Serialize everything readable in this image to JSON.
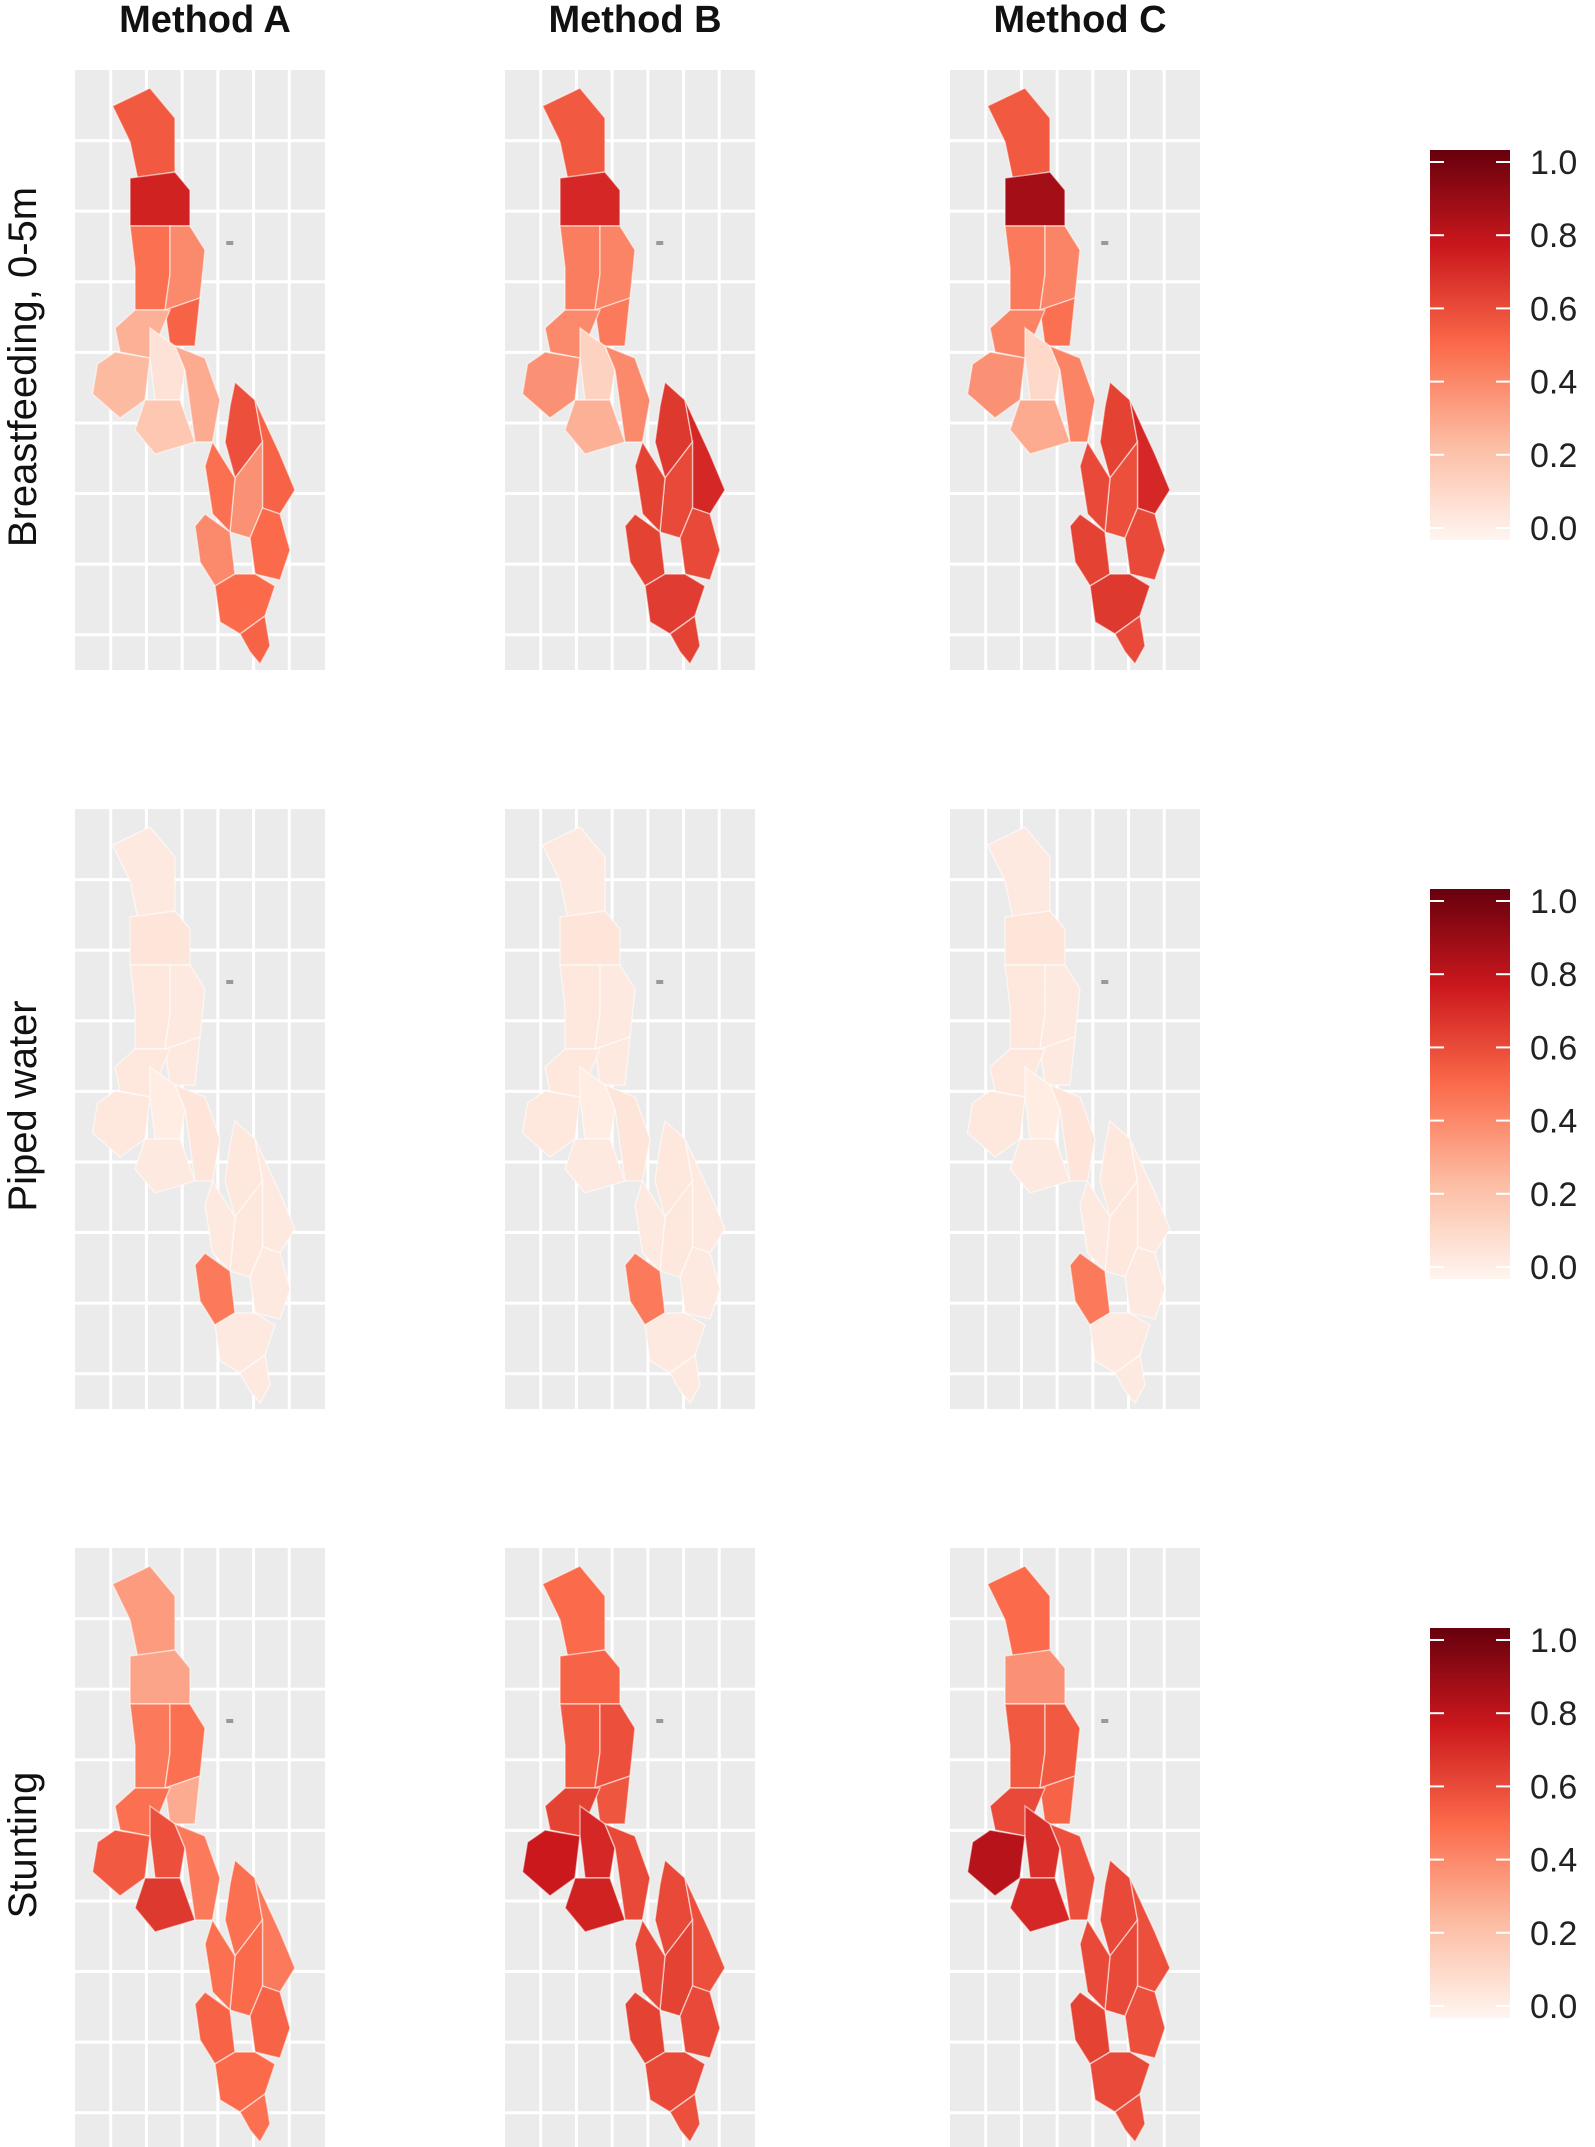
{
  "columns": [
    "Method A",
    "Method B",
    "Method C"
  ],
  "rows": [
    {
      "label": "Breastfeeding, 0-5m",
      "panels": [
        [
          0.55,
          0.72,
          0.48,
          0.4,
          0.52,
          0.28,
          0.25,
          0.08,
          0.2,
          0.3,
          0.58,
          0.52,
          0.38,
          0.48,
          0.5,
          0.4,
          0.5,
          0.52
        ],
        [
          0.55,
          0.7,
          0.44,
          0.42,
          0.45,
          0.4,
          0.38,
          0.15,
          0.28,
          0.4,
          0.65,
          0.7,
          0.6,
          0.62,
          0.6,
          0.62,
          0.64,
          0.62
        ],
        [
          0.55,
          0.85,
          0.45,
          0.42,
          0.48,
          0.42,
          0.38,
          0.12,
          0.3,
          0.42,
          0.62,
          0.7,
          0.58,
          0.6,
          0.6,
          0.62,
          0.65,
          0.6
        ]
      ],
      "legend_ticks": [
        "1.0",
        "0.8",
        "0.6",
        "0.4",
        "0.2",
        "0.0"
      ]
    },
    {
      "label": "Piped water",
      "panels": [
        [
          0.05,
          0.07,
          0.06,
          0.05,
          0.05,
          0.06,
          0.06,
          0.04,
          0.05,
          0.07,
          0.06,
          0.05,
          0.06,
          0.05,
          0.05,
          0.45,
          0.05,
          0.05
        ],
        [
          0.05,
          0.07,
          0.06,
          0.05,
          0.05,
          0.06,
          0.06,
          0.04,
          0.05,
          0.07,
          0.06,
          0.05,
          0.06,
          0.05,
          0.05,
          0.45,
          0.05,
          0.05
        ],
        [
          0.05,
          0.07,
          0.06,
          0.05,
          0.05,
          0.06,
          0.06,
          0.04,
          0.05,
          0.07,
          0.06,
          0.05,
          0.06,
          0.05,
          0.05,
          0.45,
          0.05,
          0.05
        ]
      ],
      "legend_ticks": [
        "1.0",
        "0.8",
        "0.6",
        "0.4",
        "0.2",
        "0.0"
      ]
    },
    {
      "label": "Stunting",
      "panels": [
        [
          0.35,
          0.32,
          0.45,
          0.48,
          0.3,
          0.48,
          0.55,
          0.58,
          0.65,
          0.45,
          0.48,
          0.45,
          0.5,
          0.48,
          0.52,
          0.52,
          0.5,
          0.48
        ],
        [
          0.5,
          0.52,
          0.55,
          0.58,
          0.56,
          0.62,
          0.75,
          0.7,
          0.72,
          0.6,
          0.6,
          0.58,
          0.62,
          0.6,
          0.6,
          0.62,
          0.6,
          0.58
        ],
        [
          0.5,
          0.38,
          0.55,
          0.55,
          0.52,
          0.6,
          0.8,
          0.68,
          0.7,
          0.58,
          0.6,
          0.58,
          0.6,
          0.6,
          0.58,
          0.62,
          0.6,
          0.58
        ]
      ],
      "legend_ticks": [
        "1.0",
        "0.8",
        "0.6",
        "0.4",
        "0.2",
        "0.0"
      ]
    }
  ],
  "scale": {
    "min": 0.0,
    "max": 1.0,
    "colors": [
      "#fff5f0",
      "#fcbba1",
      "#fb6a4a",
      "#cb181d",
      "#67000d"
    ]
  }
}
